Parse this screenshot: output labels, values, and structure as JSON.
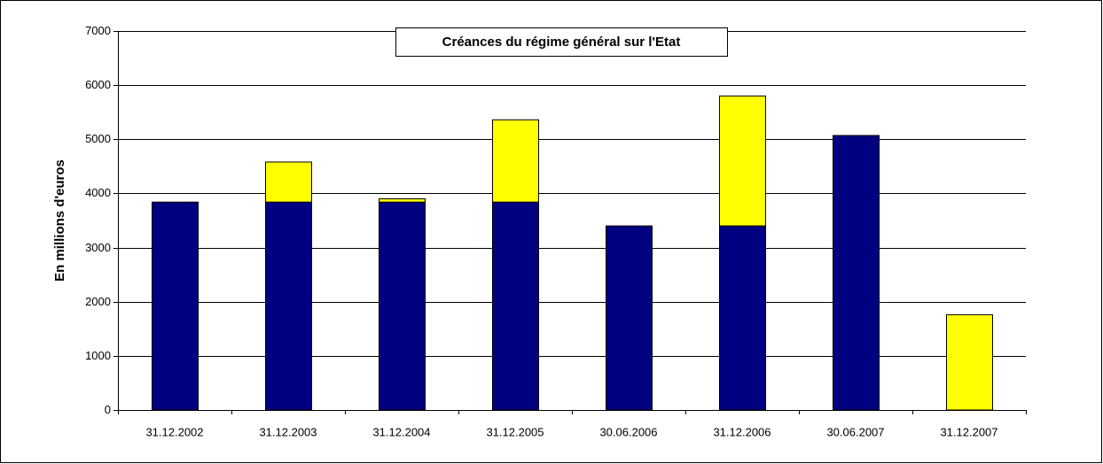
{
  "chart_data": {
    "type": "stacked_bar",
    "title": "Créances du régime général sur l'Etat",
    "y_label": "En millions d'euros",
    "categories": [
      "31.12.2002",
      "31.12.2003",
      "31.12.2004",
      "31.12.2005",
      "30.06.2006",
      "31.12.2006",
      "30.06.2007",
      "31.12.2007"
    ],
    "series": [
      {
        "color": "#000080",
        "values": [
          3840,
          3840,
          3840,
          3840,
          3400,
          3400,
          5070,
          0
        ]
      },
      {
        "color": "#ffff00",
        "values": [
          0,
          740,
          60,
          1520,
          0,
          2400,
          0,
          1760
        ]
      }
    ],
    "ylim": [
      0,
      7000
    ],
    "yticks": [
      0,
      1000,
      2000,
      3000,
      4000,
      5000,
      6000,
      7000
    ],
    "grid": true
  }
}
